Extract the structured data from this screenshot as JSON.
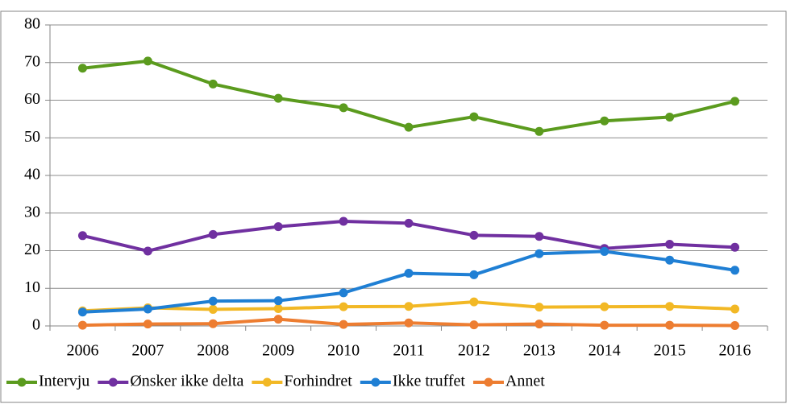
{
  "chart_data": {
    "type": "line",
    "categories": [
      "2006",
      "2007",
      "2008",
      "2009",
      "2010",
      "2011",
      "2012",
      "2013",
      "2014",
      "2015",
      "2016"
    ],
    "series": [
      {
        "name": "Intervju",
        "color": "#5b9b1e",
        "values": [
          68.5,
          70.4,
          64.3,
          60.5,
          58,
          52.8,
          55.6,
          51.7,
          54.5,
          55.5,
          59.7
        ]
      },
      {
        "name": "Ønsker ikke delta",
        "color": "#7030a0",
        "values": [
          24,
          19.9,
          24.3,
          26.4,
          27.8,
          27.3,
          24.1,
          23.8,
          20.6,
          21.7,
          20.9
        ]
      },
      {
        "name": "Forhindret",
        "color": "#f2b825",
        "values": [
          4,
          4.8,
          4.4,
          4.6,
          5.1,
          5.2,
          6.4,
          5,
          5.1,
          5.2,
          4.5
        ]
      },
      {
        "name": "Ikke truffet",
        "color": "#1f7fd4",
        "values": [
          3.7,
          4.5,
          6.6,
          6.7,
          8.8,
          14,
          13.6,
          19.2,
          19.8,
          17.5,
          14.8
        ]
      },
      {
        "name": "Annet",
        "color": "#ed7d31",
        "values": [
          0.2,
          0.5,
          0.6,
          1.8,
          0.4,
          0.8,
          0.3,
          0.5,
          0.2,
          0.2,
          0.1
        ]
      }
    ],
    "ylim": [
      0,
      80
    ],
    "yticks": [
      0,
      10,
      20,
      30,
      40,
      50,
      60,
      70,
      80
    ],
    "grid": true,
    "legend": "bottom"
  }
}
